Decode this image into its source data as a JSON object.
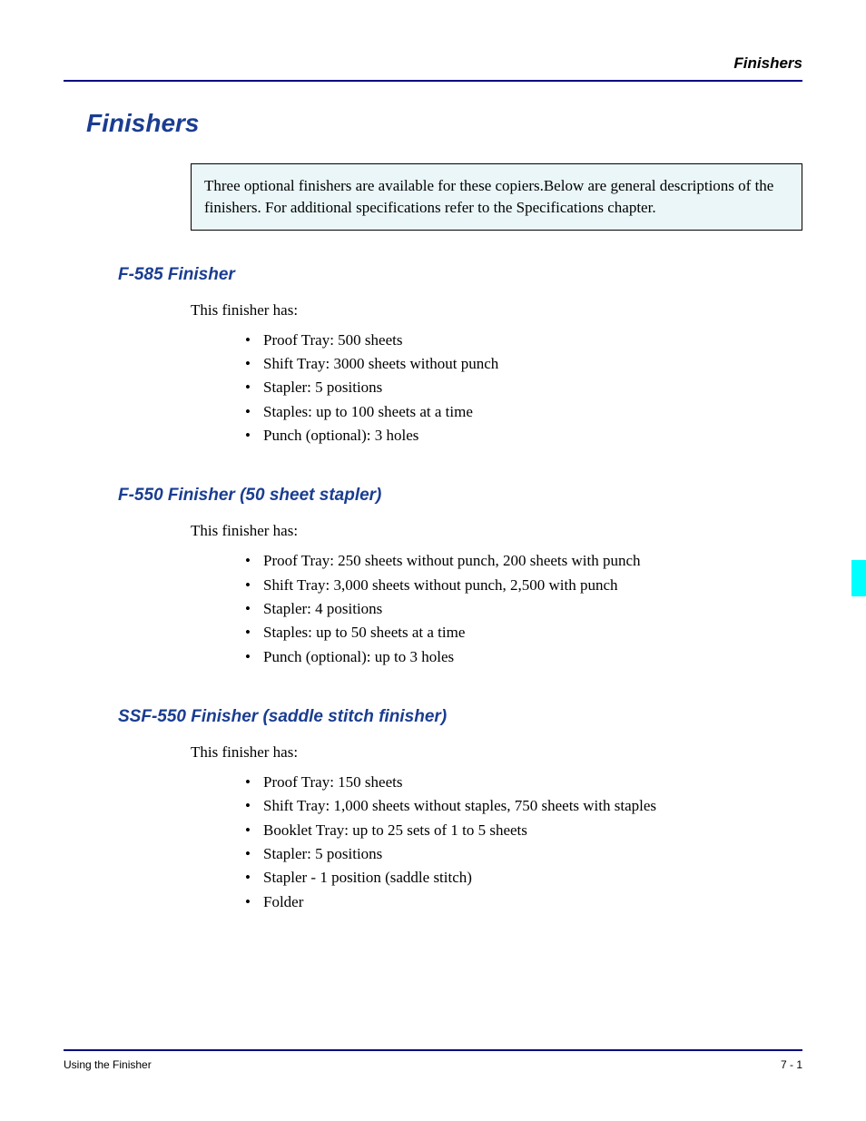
{
  "header": {
    "running_header": "Finishers"
  },
  "main_title": "Finishers",
  "intro_box": "Three optional finishers are available for these copiers.Below are general descriptions of the finishers. For additional specifications refer to the Specifications chapter.",
  "sections": [
    {
      "heading": "F-585 Finisher",
      "intro": "This finisher has:",
      "bullets": [
        "Proof Tray: 500 sheets",
        "Shift Tray: 3000 sheets without punch",
        "Stapler: 5 positions",
        "Staples: up to 100 sheets at a time",
        "Punch (optional): 3 holes"
      ]
    },
    {
      "heading": "F-550 Finisher (50 sheet stapler)",
      "intro": "This finisher has:",
      "bullets": [
        "Proof Tray: 250 sheets without punch, 200 sheets with punch",
        "Shift Tray: 3,000 sheets without punch, 2,500 with punch",
        "Stapler: 4 positions",
        "Staples: up to 50 sheets at a time",
        "Punch (optional): up to 3 holes"
      ]
    },
    {
      "heading": "SSF-550 Finisher (saddle stitch finisher)",
      "intro": "This finisher has:",
      "bullets": [
        "Proof Tray: 150 sheets",
        "Shift Tray: 1,000 sheets without staples, 750 sheets with staples",
        "Booklet Tray: up to 25 sets of 1 to 5 sheets",
        "Stapler: 5 positions",
        "Stapler - 1 position (saddle stitch)",
        "Folder"
      ]
    }
  ],
  "footer": {
    "left": "Using the Finisher",
    "right": "7 - 1"
  },
  "colors": {
    "heading_color": "#1a3d91",
    "border_color": "#000080",
    "box_bg": "#eaf6f7",
    "tab_color": "#00ffff",
    "text_color": "#000000",
    "bg_color": "#ffffff"
  },
  "typography": {
    "main_title_size": 28,
    "section_heading_size": 19,
    "body_size": 17,
    "footer_size": 12,
    "header_size": 17
  }
}
